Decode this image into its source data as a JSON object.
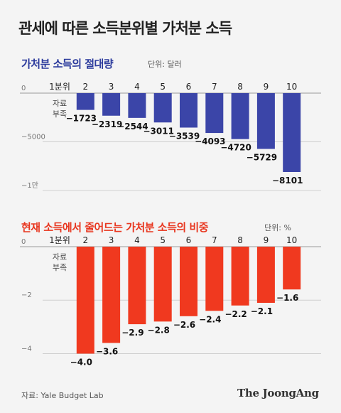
{
  "header": {
    "title": "관세에 따른 소득분위별 가처분 소득"
  },
  "footer": {
    "source": "자료: Yale Budget Lab",
    "brand": "The JoongAng"
  },
  "colors": {
    "chart1_bar": "#3b45a8",
    "chart1_title": "#2b3a9c",
    "chart2_bar": "#f0391f",
    "chart2_title": "#e8361f"
  },
  "chart_data": [
    {
      "type": "bar",
      "title": "가처분 소득의 절대량",
      "unit": "단위: 달러",
      "categories": [
        "1분위",
        "2",
        "3",
        "4",
        "5",
        "6",
        "7",
        "8",
        "9",
        "10"
      ],
      "values": [
        null,
        -1723,
        -2319,
        -2544,
        -3011,
        -3539,
        -4093,
        -4720,
        -5729,
        -8101
      ],
      "value_labels": [
        "",
        "−1723",
        "−2319",
        "−2544",
        "−3011",
        "−3539",
        "−4093",
        "−4720",
        "−5729",
        "−8101"
      ],
      "missing_label": [
        "자료",
        "부족"
      ],
      "y_ticks": [
        {
          "value": 0,
          "label": "0"
        },
        {
          "value": -5000,
          "label": "−5000"
        },
        {
          "value": -10000,
          "label": "−1만"
        }
      ],
      "ylim": [
        -10000,
        0
      ],
      "grid": true
    },
    {
      "type": "bar",
      "title": "현재 소득에서 줄어드는 가처분 소득의 비중",
      "unit": "단위: %",
      "categories": [
        "1분위",
        "2",
        "3",
        "4",
        "5",
        "6",
        "7",
        "8",
        "9",
        "10"
      ],
      "values": [
        null,
        -4.0,
        -3.6,
        -2.9,
        -2.8,
        -2.6,
        -2.4,
        -2.2,
        -2.1,
        -1.6
      ],
      "value_labels": [
        "",
        "−4.0",
        "−3.6",
        "−2.9",
        "−2.8",
        "−2.6",
        "−2.4",
        "−2.2",
        "−2.1",
        "−1.6"
      ],
      "missing_label": [
        "자료",
        "부족"
      ],
      "y_ticks": [
        {
          "value": 0,
          "label": "0"
        },
        {
          "value": -2,
          "label": "−2"
        },
        {
          "value": -4,
          "label": "−4"
        }
      ],
      "ylim": [
        -4.2,
        0
      ],
      "grid": true
    }
  ]
}
